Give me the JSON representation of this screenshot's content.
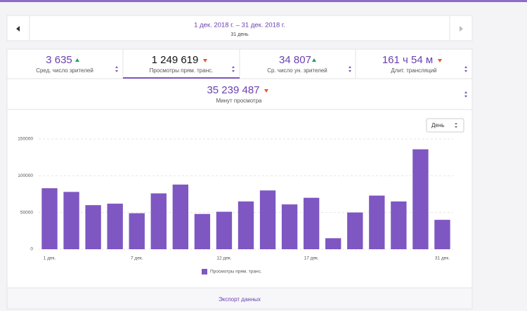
{
  "header": {
    "range": "1 дек. 2018 г. – 31 дек. 2018 г.",
    "days": "31 день"
  },
  "stats": [
    {
      "value": "3 635",
      "label": "Сред. число зрителей"
    },
    {
      "value": "1 249 619",
      "label": "Просмотры прям. транс."
    },
    {
      "value": "34 807",
      "label": "Ср. число ун. зрителей"
    },
    {
      "value": "161 ч 54 м",
      "label": "Длит. трансляций"
    },
    {
      "value": "35 239 487",
      "label": "Минут просмотра"
    }
  ],
  "interval": "День",
  "chart_data": {
    "type": "bar",
    "categories": [
      "1 дек.",
      null,
      null,
      null,
      "7 дек.",
      null,
      null,
      null,
      "12 дек.",
      null,
      null,
      null,
      "17 дек.",
      null,
      null,
      null,
      null,
      null,
      "31 дек."
    ],
    "series": [
      {
        "name": "Просмотры прям. транс.",
        "color": "#7e57c2",
        "values": [
          83000,
          78000,
          60000,
          62000,
          49000,
          76000,
          88000,
          48000,
          51000,
          65000,
          80000,
          61000,
          70000,
          15000,
          50000,
          73000,
          65000,
          136000,
          40000
        ]
      }
    ],
    "ylim": [
      0,
      150000
    ],
    "yticks": [
      0,
      50000,
      100000,
      150000
    ],
    "grid": true
  },
  "footer": "Экспорт данных"
}
